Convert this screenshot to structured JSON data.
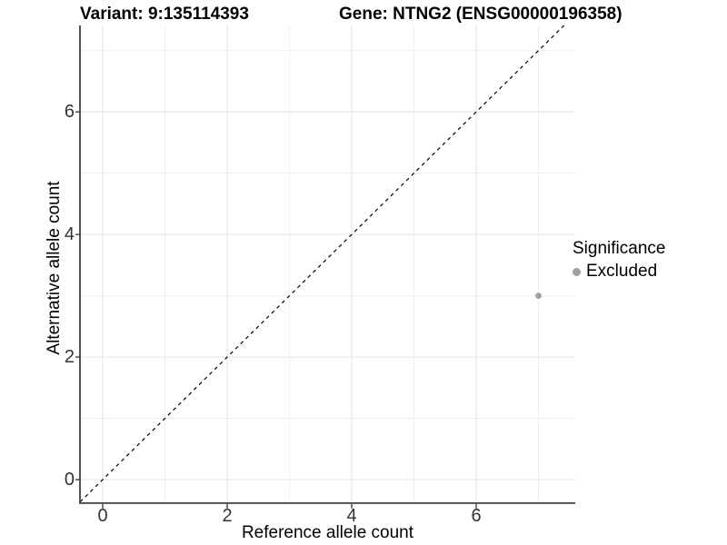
{
  "chart_data": {
    "type": "scatter",
    "title_left": "Variant: 9:135114393",
    "title_right": "Gene: NTNG2 (ENSG00000196358)",
    "xlabel": "Reference allele count",
    "ylabel": "Alternative allele count",
    "xlim": [
      -0.365,
      7.59
    ],
    "ylim": [
      -0.37,
      7.41
    ],
    "x_major_ticks": [
      0,
      2,
      4,
      6
    ],
    "y_major_ticks": [
      0,
      2,
      4,
      6
    ],
    "x_minor_gridlines": [
      1,
      3,
      5,
      7
    ],
    "y_minor_gridlines": [
      1,
      3,
      5,
      7
    ],
    "grid": true,
    "identity_line": {
      "slope": 1,
      "intercept": 0,
      "style": "dashed",
      "color": "#000000"
    },
    "points": [
      {
        "x": 7,
        "y": 3,
        "series": "Excluded"
      }
    ],
    "legend": {
      "position": "right",
      "title": "Significance",
      "entries": [
        {
          "label": "Excluded",
          "color": "#a0a0a0"
        }
      ]
    },
    "colors": {
      "point": "#a0a0a0",
      "grid_major": "#e3e3e3",
      "grid_minor": "#efefef",
      "axis_line": "#404040",
      "tick_text": "#333333",
      "title_text": "#000000"
    }
  }
}
